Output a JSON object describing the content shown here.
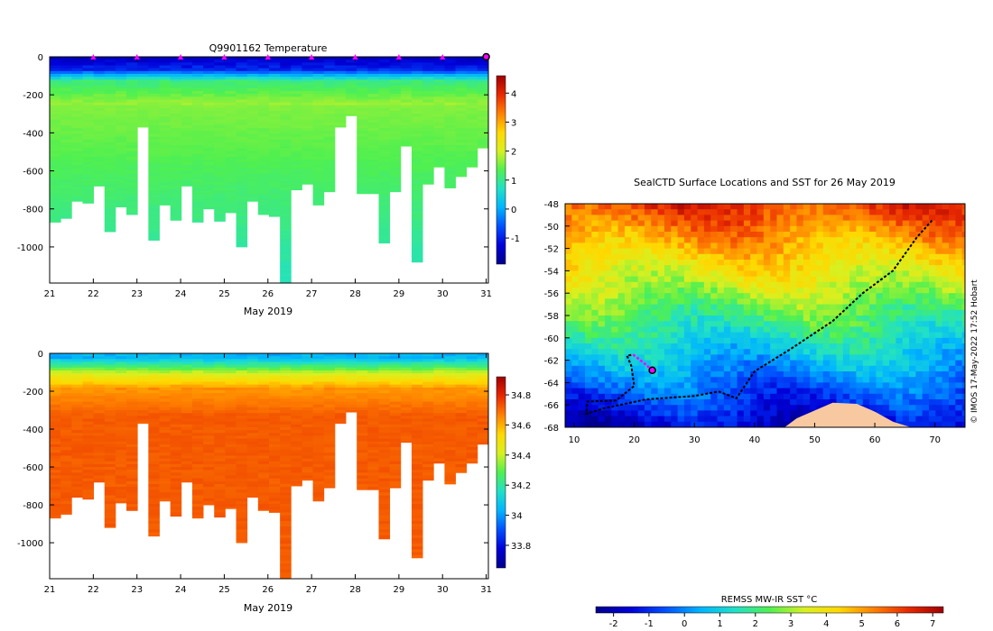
{
  "chart_data": [
    {
      "id": "temp",
      "type": "heatmap",
      "title": "Q9901162  Temperature",
      "xlabel": "May 2019",
      "ylabel": "",
      "xlim": [
        21,
        31.05
      ],
      "ylim": [
        -1190,
        0
      ],
      "xticks": [
        "21",
        "22",
        "23",
        "24",
        "25",
        "26",
        "27",
        "28",
        "29",
        "30",
        "31"
      ],
      "yticks": [
        "0",
        "-200",
        "-400",
        "-600",
        "-800",
        "-1000"
      ],
      "profile_depths": [
        870,
        850,
        760,
        770,
        680,
        920,
        790,
        830,
        370,
        965,
        780,
        860,
        680,
        870,
        800,
        865,
        820,
        1000,
        760,
        830,
        840,
        1190,
        700,
        670,
        780,
        710,
        370,
        310,
        720,
        720,
        980,
        710,
        470,
        1080,
        670,
        580,
        690,
        630,
        580,
        480
      ],
      "colorbar": {
        "min": -1.9,
        "max": 4.6,
        "ticks": [
          "4",
          "3",
          "2",
          "1",
          "0",
          "-1"
        ],
        "colors": [
          "#00008c",
          "#0000d8",
          "#0050ff",
          "#00b4ff",
          "#20e0c8",
          "#50f050",
          "#d8f020",
          "#ffd800",
          "#ff8000",
          "#e82800",
          "#a00000"
        ]
      },
      "markers": {
        "x": [
          22,
          23,
          24,
          25,
          26,
          27,
          28,
          29,
          30
        ],
        "color": "#ff00ff",
        "end_marker": 31
      }
    },
    {
      "id": "sal",
      "type": "heatmap",
      "title": "",
      "xlabel": "May 2019",
      "ylabel": "",
      "xlim": [
        21,
        31.05
      ],
      "ylim": [
        -1190,
        0
      ],
      "xticks": [
        "21",
        "22",
        "23",
        "24",
        "25",
        "26",
        "27",
        "28",
        "29",
        "30",
        "31"
      ],
      "yticks": [
        "0",
        "-200",
        "-400",
        "-600",
        "-800",
        "-1000"
      ],
      "profile_depths": [
        870,
        850,
        760,
        770,
        680,
        920,
        790,
        830,
        370,
        965,
        780,
        860,
        680,
        870,
        800,
        865,
        820,
        1000,
        760,
        830,
        840,
        1190,
        700,
        670,
        780,
        710,
        370,
        310,
        720,
        720,
        980,
        710,
        470,
        1080,
        670,
        580,
        690,
        630,
        580,
        480
      ],
      "colorbar": {
        "min": 33.65,
        "max": 34.92,
        "ticks": [
          "34.8",
          "34.6",
          "34.4",
          "34.2",
          "34",
          "33.8"
        ],
        "colors": [
          "#00008c",
          "#0000d8",
          "#0050ff",
          "#00b4ff",
          "#20e0c8",
          "#50f050",
          "#d8f020",
          "#ffd800",
          "#ff8000",
          "#e82800",
          "#a00000"
        ]
      }
    },
    {
      "id": "map",
      "type": "heatmap",
      "title": "SealCTD Surface Locations and SST for 26 May 2019",
      "xlabel": "",
      "ylabel": "",
      "xlim": [
        8.5,
        75
      ],
      "ylim": [
        -68,
        -48
      ],
      "xticks": [
        "10",
        "20",
        "30",
        "40",
        "50",
        "60",
        "70"
      ],
      "yticks": [
        "-48",
        "-50",
        "-52",
        "-54",
        "-56",
        "-58",
        "-60",
        "-62",
        "-64",
        "-66",
        "-68"
      ],
      "track": [
        [
          69.5,
          -49.5
        ],
        [
          67,
          -51
        ],
        [
          63,
          -54
        ],
        [
          58,
          -56
        ],
        [
          53,
          -58.5
        ],
        [
          46,
          -61
        ],
        [
          40,
          -63
        ],
        [
          37,
          -65.4
        ],
        [
          34,
          -64.8
        ],
        [
          30,
          -65.2
        ],
        [
          22,
          -65.5
        ],
        [
          15,
          -66.3
        ],
        [
          12,
          -66.8
        ],
        [
          12.2,
          -65.7
        ],
        [
          17,
          -65.6
        ],
        [
          20,
          -64.3
        ],
        [
          19.5,
          -62.5
        ],
        [
          18.8,
          -61.6
        ],
        [
          19.8,
          -61.5
        ]
      ],
      "recent_track": [
        [
          19.8,
          -61.5
        ],
        [
          21.5,
          -62.2
        ],
        [
          23,
          -62.9
        ]
      ],
      "last_position": [
        23,
        -62.9
      ],
      "credit": "© IMOS 17-May-2022 17:52 Hobart",
      "colorbar": {
        "label": "REMSS MW-IR SST °C",
        "min": -2.5,
        "max": 7.3,
        "ticks": [
          "-2",
          "-1",
          "0",
          "1",
          "2",
          "3",
          "4",
          "5",
          "6",
          "7"
        ],
        "colors": [
          "#00008c",
          "#0000d8",
          "#0050ff",
          "#00b4ff",
          "#20e0c8",
          "#50f050",
          "#d8f020",
          "#ffd800",
          "#ff8000",
          "#e82800",
          "#a00000"
        ]
      },
      "land_color": "#f8c8a0"
    }
  ]
}
